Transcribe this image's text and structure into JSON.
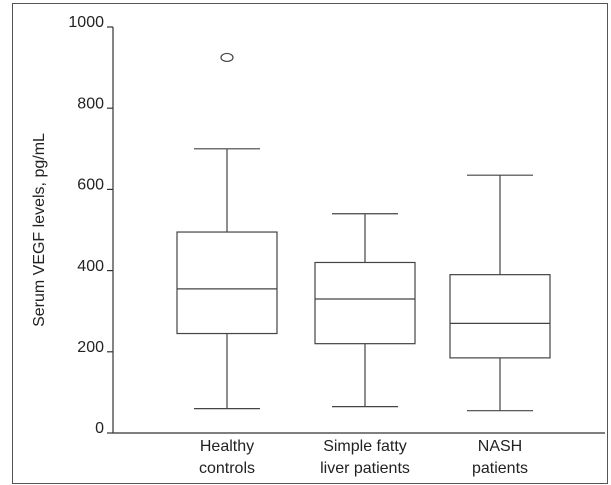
{
  "chart_data": {
    "type": "box",
    "y_label": "Serum VEGF levels, pg/mL",
    "categories": [
      [
        "Healthy",
        "controls"
      ],
      [
        "Simple fatty",
        "liver patients"
      ],
      [
        "NASH",
        "patients"
      ]
    ],
    "boxes": [
      {
        "whisker_low": 60,
        "q1": 245,
        "median": 355,
        "q3": 495,
        "whisker_high": 700,
        "outliers": [
          925
        ]
      },
      {
        "whisker_low": 65,
        "q1": 220,
        "median": 330,
        "q3": 420,
        "whisker_high": 540,
        "outliers": []
      },
      {
        "whisker_low": 55,
        "q1": 185,
        "median": 270,
        "q3": 390,
        "whisker_high": 635,
        "outliers": []
      }
    ],
    "color": "#444444",
    "ylim": [
      0,
      1000
    ],
    "yticks": [
      0,
      200,
      400,
      600,
      800,
      1000
    ]
  }
}
